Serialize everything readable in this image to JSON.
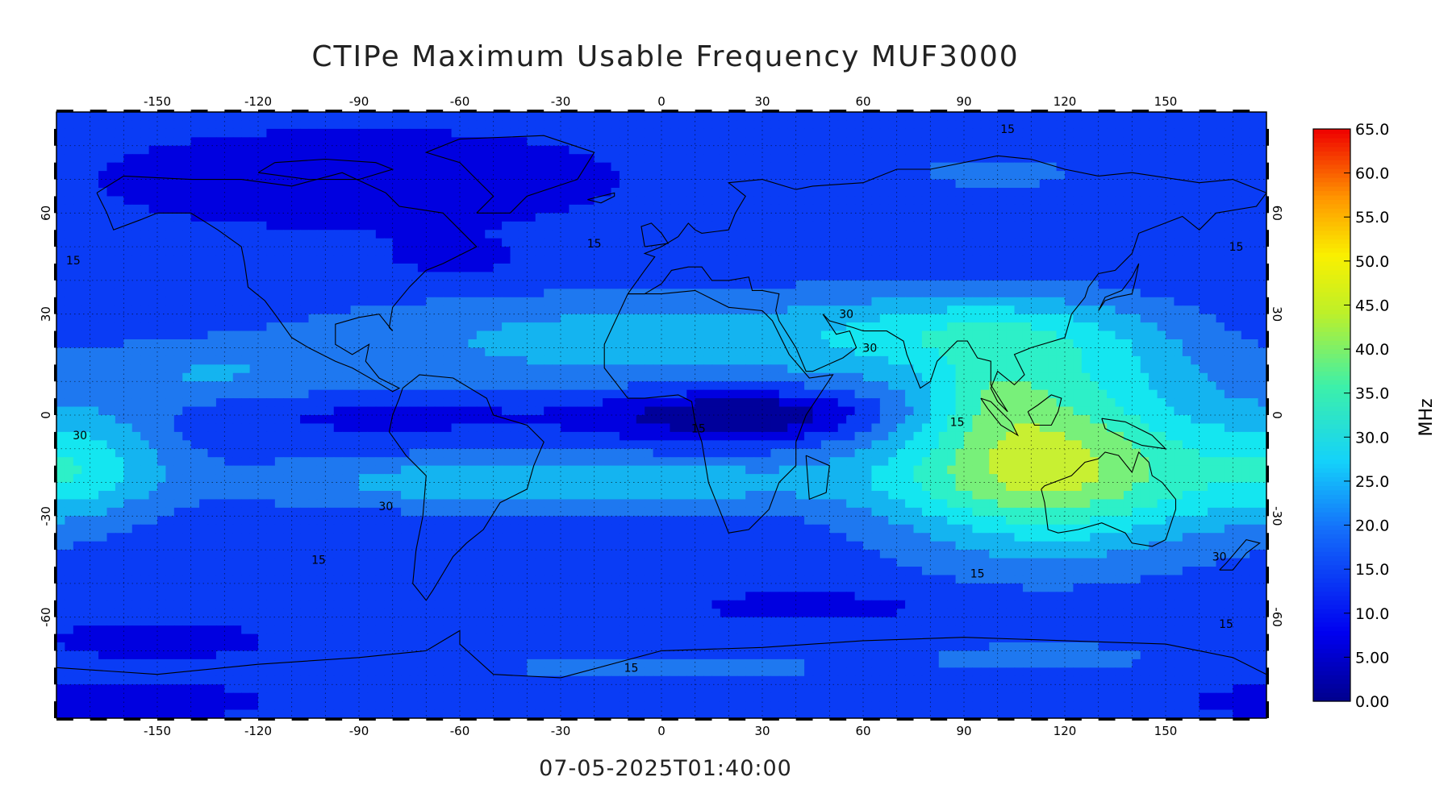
{
  "title": "CTIPe Maximum Usable Frequency MUF3000",
  "timestamp": "07-05-2025T01:40:00",
  "map": {
    "lon_range": [
      -180,
      180
    ],
    "lat_range": [
      -90,
      90
    ],
    "lon_ticks": [
      -150,
      -120,
      -90,
      -60,
      -30,
      0,
      30,
      60,
      90,
      120,
      150
    ],
    "lat_ticks": [
      -60,
      -30,
      0,
      30,
      60
    ],
    "grid_dotted": true
  },
  "colorbar": {
    "unit": "MHz",
    "range": [
      0,
      65
    ],
    "labels": [
      "65.0",
      "60.0",
      "55.0",
      "50.0",
      "45.0",
      "40.0",
      "35.0",
      "30.0",
      "25.0",
      "20.0",
      "15.0",
      "10.0",
      "5.00",
      "0.00"
    ],
    "bands": [
      {
        "min": 0,
        "color": "#00009b"
      },
      {
        "min": 5,
        "color": "#0000e0"
      },
      {
        "min": 10,
        "color": "#0a3cf5"
      },
      {
        "min": 15,
        "color": "#1e78f0"
      },
      {
        "min": 20,
        "color": "#14b4f0"
      },
      {
        "min": 25,
        "color": "#14e6f0"
      },
      {
        "min": 30,
        "color": "#2df0c8"
      },
      {
        "min": 35,
        "color": "#78f07a"
      },
      {
        "min": 40,
        "color": "#c8f032"
      },
      {
        "min": 45,
        "color": "#f0f000"
      },
      {
        "min": 50,
        "color": "#ffb400"
      },
      {
        "min": 55,
        "color": "#ff7800"
      },
      {
        "min": 60,
        "color": "#ff2800"
      }
    ]
  },
  "contour_labels": [
    {
      "text": "15",
      "lon": 103,
      "lat": 85
    },
    {
      "text": "15",
      "lon": -20,
      "lat": 51
    },
    {
      "text": "15",
      "lon": -175,
      "lat": 46
    },
    {
      "text": "15",
      "lon": 171,
      "lat": 50
    },
    {
      "text": "30",
      "lon": 55,
      "lat": 30
    },
    {
      "text": "30",
      "lon": 62,
      "lat": 20
    },
    {
      "text": "15",
      "lon": 11,
      "lat": -4
    },
    {
      "text": "15",
      "lon": 88,
      "lat": -2
    },
    {
      "text": "30",
      "lon": -173,
      "lat": -6
    },
    {
      "text": "30",
      "lon": -82,
      "lat": -27
    },
    {
      "text": "15",
      "lon": -102,
      "lat": -43
    },
    {
      "text": "15",
      "lon": 94,
      "lat": -47
    },
    {
      "text": "30",
      "lon": 166,
      "lat": -42
    },
    {
      "text": "15",
      "lon": 168,
      "lat": -62
    },
    {
      "text": "15",
      "lon": -9,
      "lat": -75
    }
  ],
  "muf_field": {
    "background": 12,
    "features": [
      {
        "lon": 0,
        "lat": 22,
        "sx": 100,
        "sy": 14,
        "amp": 11
      },
      {
        "lon": -135,
        "lat": 12,
        "sx": 45,
        "sy": 9,
        "amp": 7
      },
      {
        "lon": -30,
        "lat": -20,
        "sx": 90,
        "sy": 8,
        "amp": 13
      },
      {
        "lon": -170,
        "lat": -12,
        "sx": 25,
        "sy": 16,
        "amp": 10
      },
      {
        "lon": 175,
        "lat": -20,
        "sx": 30,
        "sy": 15,
        "amp": 6
      },
      {
        "lon": 115,
        "lat": -15,
        "sx": 48,
        "sy": 24,
        "amp": 30
      },
      {
        "lon": 100,
        "lat": 5,
        "sx": 18,
        "sy": 12,
        "amp": 8
      },
      {
        "lon": 95,
        "lat": 25,
        "sx": 45,
        "sy": 12,
        "amp": 12
      },
      {
        "lon": 130,
        "lat": 15,
        "sx": 35,
        "sy": 15,
        "amp": 6
      },
      {
        "lon": 25,
        "lat": 0,
        "sx": 40,
        "sy": 7,
        "amp": -14
      },
      {
        "lon": -80,
        "lat": 0,
        "sx": 50,
        "sy": 6,
        "amp": -4
      },
      {
        "lon": -90,
        "lat": 70,
        "sx": 75,
        "sy": 14,
        "amp": -6
      },
      {
        "lon": 100,
        "lat": 72,
        "sx": 40,
        "sy": 8,
        "amp": 4
      },
      {
        "lon": -60,
        "lat": 45,
        "sx": 30,
        "sy": 8,
        "amp": -3
      },
      {
        "lon": -150,
        "lat": -67,
        "sx": 30,
        "sy": 5,
        "amp": -6
      },
      {
        "lon": 45,
        "lat": -57,
        "sx": 30,
        "sy": 4,
        "amp": -6
      },
      {
        "lon": -160,
        "lat": -85,
        "sx": 40,
        "sy": 5,
        "amp": -6
      },
      {
        "lon": 0,
        "lat": -75,
        "sx": 60,
        "sy": 5,
        "amp": 5
      },
      {
        "lon": 115,
        "lat": -72,
        "sx": 40,
        "sy": 5,
        "amp": 5
      }
    ]
  },
  "coastlines": [
    [
      [
        -168,
        66
      ],
      [
        -160,
        71
      ],
      [
        -140,
        70
      ],
      [
        -125,
        70
      ],
      [
        -110,
        68
      ],
      [
        -95,
        72
      ],
      [
        -82,
        66
      ],
      [
        -78,
        62
      ],
      [
        -65,
        60
      ],
      [
        -60,
        55
      ],
      [
        -55,
        50
      ],
      [
        -65,
        45
      ],
      [
        -70,
        43
      ],
      [
        -75,
        38
      ],
      [
        -80,
        32
      ],
      [
        -81,
        26
      ],
      [
        -80,
        25
      ],
      [
        -84,
        30
      ],
      [
        -90,
        29
      ],
      [
        -97,
        27
      ],
      [
        -97,
        21
      ],
      [
        -92,
        18
      ],
      [
        -87,
        21
      ],
      [
        -88,
        16
      ],
      [
        -84,
        11
      ],
      [
        -80,
        9
      ],
      [
        -78,
        8
      ],
      [
        -80,
        7
      ],
      [
        -85,
        10
      ],
      [
        -92,
        14
      ],
      [
        -97,
        16
      ],
      [
        -105,
        20
      ],
      [
        -110,
        23
      ],
      [
        -115,
        30
      ],
      [
        -118,
        34
      ],
      [
        -123,
        38
      ],
      [
        -124,
        45
      ],
      [
        -125,
        50
      ],
      [
        -132,
        55
      ],
      [
        -140,
        60
      ],
      [
        -150,
        60
      ],
      [
        -155,
        58
      ],
      [
        -163,
        55
      ],
      [
        -165,
        60
      ],
      [
        -168,
        66
      ]
    ],
    [
      [
        -77,
        8
      ],
      [
        -72,
        12
      ],
      [
        -62,
        11
      ],
      [
        -52,
        5
      ],
      [
        -50,
        0
      ],
      [
        -40,
        -3
      ],
      [
        -35,
        -8
      ],
      [
        -38,
        -15
      ],
      [
        -40,
        -22
      ],
      [
        -48,
        -26
      ],
      [
        -53,
        -34
      ],
      [
        -58,
        -38
      ],
      [
        -62,
        -42
      ],
      [
        -65,
        -47
      ],
      [
        -68,
        -52
      ],
      [
        -70,
        -55
      ],
      [
        -74,
        -50
      ],
      [
        -73,
        -40
      ],
      [
        -71,
        -30
      ],
      [
        -70,
        -18
      ],
      [
        -76,
        -12
      ],
      [
        -81,
        -5
      ],
      [
        -80,
        0
      ],
      [
        -78,
        5
      ],
      [
        -77,
        8
      ]
    ],
    [
      [
        -55,
        60
      ],
      [
        -45,
        60
      ],
      [
        -40,
        65
      ],
      [
        -25,
        70
      ],
      [
        -20,
        78
      ],
      [
        -35,
        83
      ],
      [
        -60,
        82
      ],
      [
        -70,
        78
      ],
      [
        -60,
        75
      ],
      [
        -55,
        70
      ],
      [
        -50,
        65
      ],
      [
        -55,
        60
      ]
    ],
    [
      [
        -120,
        72
      ],
      [
        -115,
        75
      ],
      [
        -100,
        76
      ],
      [
        -85,
        75
      ],
      [
        -80,
        73
      ],
      [
        -90,
        70
      ],
      [
        -105,
        70
      ],
      [
        -120,
        72
      ]
    ],
    [
      [
        -22,
        64
      ],
      [
        -14,
        66
      ],
      [
        -14,
        65
      ],
      [
        -18,
        63
      ],
      [
        -22,
        64
      ]
    ],
    [
      [
        -10,
        36
      ],
      [
        -17,
        21
      ],
      [
        -17,
        14
      ],
      [
        -10,
        5
      ],
      [
        -5,
        5
      ],
      [
        5,
        6
      ],
      [
        9,
        4
      ],
      [
        10,
        -2
      ],
      [
        12,
        -8
      ],
      [
        14,
        -20
      ],
      [
        18,
        -30
      ],
      [
        20,
        -35
      ],
      [
        26,
        -34
      ],
      [
        32,
        -28
      ],
      [
        35,
        -20
      ],
      [
        40,
        -15
      ],
      [
        40,
        -8
      ],
      [
        43,
        0
      ],
      [
        51,
        12
      ],
      [
        44,
        11
      ],
      [
        38,
        18
      ],
      [
        33,
        28
      ],
      [
        30,
        31
      ],
      [
        20,
        32
      ],
      [
        10,
        37
      ],
      [
        0,
        36
      ],
      [
        -10,
        36
      ]
    ],
    [
      [
        -10,
        36
      ],
      [
        -5,
        43
      ],
      [
        -2,
        47
      ],
      [
        -5,
        48
      ],
      [
        0,
        50
      ],
      [
        5,
        53
      ],
      [
        8,
        57
      ],
      [
        10,
        55
      ],
      [
        12,
        54
      ],
      [
        20,
        55
      ],
      [
        22,
        60
      ],
      [
        25,
        65
      ],
      [
        20,
        69
      ],
      [
        30,
        70
      ],
      [
        40,
        67
      ],
      [
        45,
        68
      ],
      [
        60,
        69
      ],
      [
        70,
        73
      ],
      [
        80,
        73
      ],
      [
        100,
        77
      ],
      [
        110,
        76
      ],
      [
        120,
        73
      ],
      [
        130,
        71
      ],
      [
        140,
        72
      ],
      [
        160,
        69
      ],
      [
        170,
        70
      ],
      [
        180,
        66
      ],
      [
        177,
        62
      ],
      [
        165,
        60
      ],
      [
        160,
        55
      ],
      [
        155,
        59
      ],
      [
        142,
        54
      ],
      [
        140,
        48
      ],
      [
        135,
        43
      ],
      [
        130,
        42
      ],
      [
        127,
        38
      ],
      [
        126,
        35
      ],
      [
        122,
        30
      ],
      [
        120,
        23
      ],
      [
        110,
        20
      ],
      [
        105,
        18
      ],
      [
        108,
        12
      ],
      [
        105,
        9
      ],
      [
        100,
        13
      ],
      [
        98,
        8
      ],
      [
        100,
        4
      ],
      [
        103,
        1
      ],
      [
        98,
        9
      ],
      [
        98,
        16
      ],
      [
        94,
        17
      ],
      [
        91,
        22
      ],
      [
        88,
        22
      ],
      [
        82,
        16
      ],
      [
        80,
        10
      ],
      [
        77,
        8
      ],
      [
        73,
        18
      ],
      [
        72,
        22
      ],
      [
        67,
        25
      ],
      [
        60,
        25
      ],
      [
        57,
        26
      ],
      [
        50,
        28
      ],
      [
        48,
        30
      ],
      [
        52,
        24
      ],
      [
        56,
        25
      ],
      [
        58,
        20
      ],
      [
        54,
        17
      ],
      [
        45,
        13
      ],
      [
        43,
        13
      ],
      [
        40,
        20
      ],
      [
        35,
        28
      ],
      [
        34,
        31
      ],
      [
        35,
        36
      ],
      [
        30,
        37
      ],
      [
        27,
        37
      ],
      [
        26,
        41
      ],
      [
        20,
        40
      ],
      [
        15,
        40
      ],
      [
        12,
        44
      ],
      [
        8,
        44
      ],
      [
        3,
        43
      ],
      [
        0,
        39
      ],
      [
        -5,
        36
      ],
      [
        -10,
        36
      ]
    ],
    [
      [
        113,
        -22
      ],
      [
        114,
        -26
      ],
      [
        115,
        -34
      ],
      [
        118,
        -35
      ],
      [
        124,
        -34
      ],
      [
        131,
        -32
      ],
      [
        138,
        -35
      ],
      [
        140,
        -38
      ],
      [
        146,
        -39
      ],
      [
        150,
        -37
      ],
      [
        153,
        -28
      ],
      [
        153,
        -25
      ],
      [
        149,
        -20
      ],
      [
        146,
        -18
      ],
      [
        145,
        -14
      ],
      [
        142,
        -11
      ],
      [
        140,
        -17
      ],
      [
        136,
        -12
      ],
      [
        132,
        -11
      ],
      [
        130,
        -13
      ],
      [
        126,
        -14
      ],
      [
        122,
        -18
      ],
      [
        114,
        -21
      ],
      [
        113,
        -22
      ]
    ],
    [
      [
        95,
        5
      ],
      [
        98,
        4
      ],
      [
        104,
        -2
      ],
      [
        106,
        -6
      ],
      [
        101,
        -3
      ],
      [
        97,
        2
      ],
      [
        95,
        5
      ]
    ],
    [
      [
        109,
        1
      ],
      [
        112,
        3
      ],
      [
        116,
        6
      ],
      [
        119,
        5
      ],
      [
        118,
        1
      ],
      [
        116,
        -3
      ],
      [
        111,
        -3
      ],
      [
        109,
        1
      ]
    ],
    [
      [
        131,
        -1
      ],
      [
        138,
        -2
      ],
      [
        146,
        -6
      ],
      [
        150,
        -10
      ],
      [
        143,
        -9
      ],
      [
        138,
        -7
      ],
      [
        132,
        -4
      ],
      [
        131,
        -1
      ]
    ],
    [
      [
        43,
        -12
      ],
      [
        50,
        -15
      ],
      [
        49,
        -23
      ],
      [
        44,
        -25
      ],
      [
        43,
        -12
      ]
    ],
    [
      [
        130,
        31
      ],
      [
        132,
        34
      ],
      [
        135,
        35
      ],
      [
        140,
        36
      ],
      [
        141,
        40
      ],
      [
        142,
        45
      ],
      [
        140,
        41
      ],
      [
        137,
        37
      ],
      [
        132,
        35
      ],
      [
        130,
        31
      ]
    ],
    [
      [
        -5,
        50
      ],
      [
        2,
        51
      ],
      [
        0,
        54
      ],
      [
        -3,
        57
      ],
      [
        -6,
        56
      ],
      [
        -5,
        50
      ]
    ],
    [
      [
        166,
        -46
      ],
      [
        170,
        -46
      ],
      [
        174,
        -41
      ],
      [
        178,
        -38
      ],
      [
        174,
        -37
      ],
      [
        168,
        -44
      ],
      [
        166,
        -46
      ]
    ],
    [
      [
        -180,
        -75
      ],
      [
        -150,
        -77
      ],
      [
        -120,
        -74
      ],
      [
        -90,
        -72
      ],
      [
        -70,
        -70
      ],
      [
        -60,
        -64
      ],
      [
        -60,
        -68
      ],
      [
        -50,
        -77
      ],
      [
        -30,
        -78
      ],
      [
        0,
        -70
      ],
      [
        30,
        -69
      ],
      [
        60,
        -67
      ],
      [
        90,
        -66
      ],
      [
        120,
        -67
      ],
      [
        150,
        -68
      ],
      [
        170,
        -72
      ],
      [
        180,
        -77
      ]
    ]
  ]
}
